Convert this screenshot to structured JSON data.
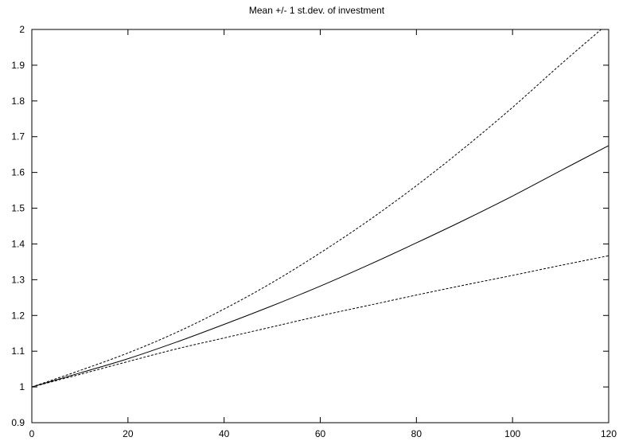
{
  "chart_data": {
    "type": "line",
    "title": "Mean +/- 1 st.dev. of investment",
    "xlabel": "",
    "ylabel": "",
    "xlim": [
      0,
      120
    ],
    "ylim": [
      0.9,
      2
    ],
    "x_ticks": [
      "0",
      "20",
      "40",
      "60",
      "80",
      "100",
      "120"
    ],
    "y_ticks": [
      "0.9",
      "1",
      "1.1",
      "1.2",
      "1.3",
      "1.4",
      "1.5",
      "1.6",
      "1.7",
      "1.8",
      "1.9",
      "2"
    ],
    "grid": false,
    "x": [
      0,
      10,
      20,
      30,
      40,
      50,
      60,
      70,
      80,
      90,
      100,
      110,
      120
    ],
    "series": [
      {
        "style": "dashed",
        "values": [
          1.0,
          1.046,
          1.095,
          1.152,
          1.218,
          1.292,
          1.375,
          1.465,
          1.563,
          1.669,
          1.782,
          1.902,
          2.018
        ]
      },
      {
        "style": "solid",
        "values": [
          1.0,
          1.039,
          1.079,
          1.125,
          1.175,
          1.227,
          1.282,
          1.341,
          1.403,
          1.467,
          1.534,
          1.605,
          1.675
        ]
      },
      {
        "style": "dashed",
        "values": [
          1.0,
          1.035,
          1.071,
          1.106,
          1.137,
          1.168,
          1.199,
          1.228,
          1.257,
          1.285,
          1.312,
          1.34,
          1.367
        ]
      }
    ]
  }
}
